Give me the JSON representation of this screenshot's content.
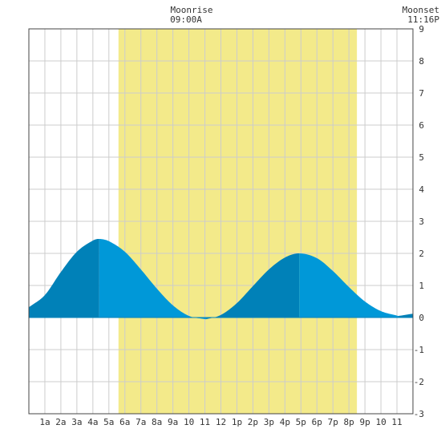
{
  "annotations": {
    "moonrise": {
      "label": "Moonrise",
      "time": "09:00A"
    },
    "moonset": {
      "label": "Moonset",
      "time": "11:16P"
    }
  },
  "chart_data": {
    "type": "area",
    "title": "",
    "xlabel": "",
    "ylabel": "",
    "xlim": [
      0,
      24
    ],
    "ylim": [
      -3,
      9
    ],
    "grid": true,
    "x_tick_labels": [
      "1a",
      "2a",
      "3a",
      "4a",
      "5a",
      "6a",
      "7a",
      "8a",
      "9a",
      "10",
      "11",
      "12",
      "1p",
      "2p",
      "3p",
      "4p",
      "5p",
      "6p",
      "7p",
      "8p",
      "9p",
      "10",
      "11"
    ],
    "y_tick_labels": [
      "-3",
      "-2",
      "-1",
      "0",
      "1",
      "2",
      "3",
      "4",
      "5",
      "6",
      "7",
      "8",
      "9"
    ],
    "daylight_band": {
      "start_hour": 5.6,
      "end_hour": 20.5
    },
    "extrema": [
      {
        "type": "high",
        "hour": 4.4,
        "value": 2.45
      },
      {
        "type": "low",
        "hour": 11.1,
        "value": -0.05
      },
      {
        "type": "high",
        "hour": 16.9,
        "value": 2.0
      },
      {
        "type": "low",
        "hour": 23.1,
        "value": 0.05
      }
    ],
    "series": [
      {
        "x": [
          0,
          1,
          2,
          3,
          4,
          4.4,
          5,
          6,
          7,
          8,
          9,
          10,
          11,
          11.1,
          12,
          13,
          14,
          15,
          16,
          16.9,
          18,
          19,
          20,
          21,
          22,
          23,
          23.1,
          24
        ],
        "values": [
          0.32,
          0.7,
          1.42,
          2.05,
          2.4,
          2.45,
          2.38,
          2.05,
          1.5,
          0.9,
          0.38,
          0.05,
          -0.05,
          -0.05,
          0.08,
          0.45,
          0.98,
          1.5,
          1.87,
          2.0,
          1.85,
          1.45,
          0.95,
          0.5,
          0.2,
          0.06,
          0.05,
          0.12
        ]
      }
    ],
    "colors": {
      "daylight": "#f3ea8a",
      "area_light": "#0098d8",
      "area_dark": "#0081b8",
      "grid": "#cccccc",
      "frame": "#444444"
    }
  }
}
